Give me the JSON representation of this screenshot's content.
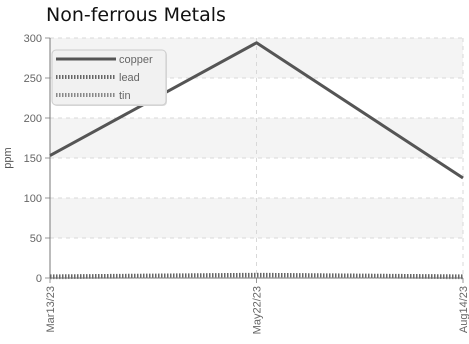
{
  "chart_data": {
    "type": "line",
    "title": "Non-ferrous Metals",
    "xlabel": "",
    "ylabel": "ppm",
    "categories": [
      "Mar13/23",
      "May22/23",
      "Aug14/23"
    ],
    "ylim": [
      0,
      300
    ],
    "yticks": [
      "0",
      "50",
      "100",
      "150",
      "200",
      "250",
      "300"
    ],
    "grid": true,
    "legend_position": "top-left",
    "series": [
      {
        "name": "copper",
        "values": [
          153,
          294,
          125
        ],
        "color": "#555555",
        "style": "solid"
      },
      {
        "name": "lead",
        "values": [
          2,
          4,
          2
        ],
        "color": "#666666",
        "style": "dotted"
      },
      {
        "name": "tin",
        "values": [
          1,
          3,
          1
        ],
        "color": "#888888",
        "style": "dotted"
      }
    ]
  }
}
